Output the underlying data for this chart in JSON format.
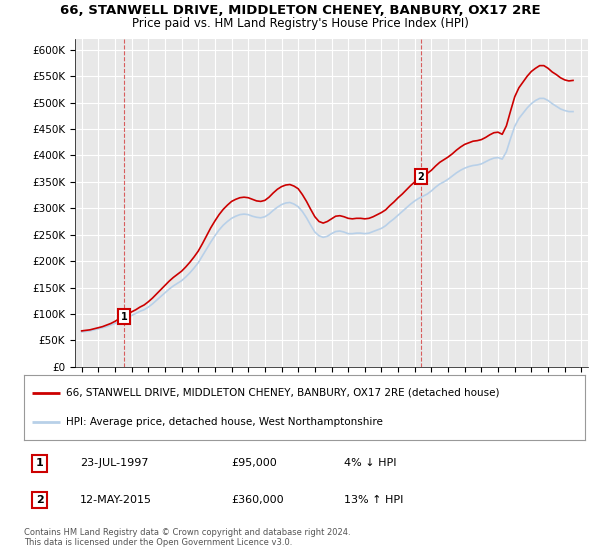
{
  "title_line1": "66, STANWELL DRIVE, MIDDLETON CHENEY, BANBURY, OX17 2RE",
  "title_line2": "Price paid vs. HM Land Registry's House Price Index (HPI)",
  "background_color": "#ffffff",
  "plot_bg_color": "#e8e8e8",
  "grid_color": "#ffffff",
  "ylim": [
    0,
    620000
  ],
  "yticks": [
    0,
    50000,
    100000,
    150000,
    200000,
    250000,
    300000,
    350000,
    400000,
    450000,
    500000,
    550000,
    600000
  ],
  "ytick_labels": [
    "£0",
    "£50K",
    "£100K",
    "£150K",
    "£200K",
    "£250K",
    "£300K",
    "£350K",
    "£400K",
    "£450K",
    "£500K",
    "£550K",
    "£600K"
  ],
  "xlim_start": 1994.6,
  "xlim_end": 2025.4,
  "sale1_x": 1997.55,
  "sale1_y": 95000,
  "sale2_x": 2015.36,
  "sale2_y": 360000,
  "sale1_date": "23-JUL-1997",
  "sale1_price": "£95,000",
  "sale1_hpi": "4% ↓ HPI",
  "sale2_date": "12-MAY-2015",
  "sale2_price": "£360,000",
  "sale2_hpi": "13% ↑ HPI",
  "hpi_line_color": "#b8d0e8",
  "price_line_color": "#cc0000",
  "legend_label_red": "66, STANWELL DRIVE, MIDDLETON CHENEY, BANBURY, OX17 2RE (detached house)",
  "legend_label_blue": "HPI: Average price, detached house, West Northamptonshire",
  "footer": "Contains HM Land Registry data © Crown copyright and database right 2024.\nThis data is licensed under the Open Government Licence v3.0.",
  "hpi_data_x": [
    1995.0,
    1995.25,
    1995.5,
    1995.75,
    1996.0,
    1996.25,
    1996.5,
    1996.75,
    1997.0,
    1997.25,
    1997.5,
    1997.75,
    1998.0,
    1998.25,
    1998.5,
    1998.75,
    1999.0,
    1999.25,
    1999.5,
    1999.75,
    2000.0,
    2000.25,
    2000.5,
    2000.75,
    2001.0,
    2001.25,
    2001.5,
    2001.75,
    2002.0,
    2002.25,
    2002.5,
    2002.75,
    2003.0,
    2003.25,
    2003.5,
    2003.75,
    2004.0,
    2004.25,
    2004.5,
    2004.75,
    2005.0,
    2005.25,
    2005.5,
    2005.75,
    2006.0,
    2006.25,
    2006.5,
    2006.75,
    2007.0,
    2007.25,
    2007.5,
    2007.75,
    2008.0,
    2008.25,
    2008.5,
    2008.75,
    2009.0,
    2009.25,
    2009.5,
    2009.75,
    2010.0,
    2010.25,
    2010.5,
    2010.75,
    2011.0,
    2011.25,
    2011.5,
    2011.75,
    2012.0,
    2012.25,
    2012.5,
    2012.75,
    2013.0,
    2013.25,
    2013.5,
    2013.75,
    2014.0,
    2014.25,
    2014.5,
    2014.75,
    2015.0,
    2015.25,
    2015.5,
    2015.75,
    2016.0,
    2016.25,
    2016.5,
    2016.75,
    2017.0,
    2017.25,
    2017.5,
    2017.75,
    2018.0,
    2018.25,
    2018.5,
    2018.75,
    2019.0,
    2019.25,
    2019.5,
    2019.75,
    2020.0,
    2020.25,
    2020.5,
    2020.75,
    2021.0,
    2021.25,
    2021.5,
    2021.75,
    2022.0,
    2022.25,
    2022.5,
    2022.75,
    2023.0,
    2023.25,
    2023.5,
    2023.75,
    2024.0,
    2024.25,
    2024.5
  ],
  "hpi_data_y": [
    66000,
    67000,
    68000,
    70000,
    72000,
    74000,
    76000,
    79000,
    82000,
    86000,
    90000,
    94000,
    97000,
    101000,
    105000,
    108000,
    113000,
    119000,
    126000,
    133000,
    140000,
    147000,
    153000,
    158000,
    163000,
    170000,
    178000,
    187000,
    197000,
    210000,
    223000,
    236000,
    248000,
    259000,
    268000,
    275000,
    281000,
    285000,
    288000,
    289000,
    288000,
    285000,
    283000,
    282000,
    284000,
    289000,
    296000,
    302000,
    307000,
    310000,
    311000,
    308000,
    303000,
    294000,
    282000,
    268000,
    255000,
    248000,
    245000,
    247000,
    252000,
    256000,
    257000,
    255000,
    252000,
    252000,
    253000,
    253000,
    252000,
    253000,
    256000,
    259000,
    262000,
    267000,
    274000,
    280000,
    287000,
    294000,
    301000,
    308000,
    314000,
    319000,
    323000,
    327000,
    333000,
    340000,
    346000,
    350000,
    355000,
    361000,
    367000,
    372000,
    376000,
    379000,
    381000,
    382000,
    384000,
    388000,
    392000,
    395000,
    396000,
    393000,
    407000,
    432000,
    455000,
    470000,
    480000,
    490000,
    498000,
    504000,
    508000,
    508000,
    504000,
    498000,
    493000,
    488000,
    485000,
    483000,
    483000
  ],
  "price_data_x": [
    1995.0,
    1995.25,
    1995.5,
    1995.75,
    1996.0,
    1996.25,
    1996.5,
    1996.75,
    1997.0,
    1997.25,
    1997.5,
    1997.75,
    1998.0,
    1998.25,
    1998.5,
    1998.75,
    1999.0,
    1999.25,
    1999.5,
    1999.75,
    2000.0,
    2000.25,
    2000.5,
    2000.75,
    2001.0,
    2001.25,
    2001.5,
    2001.75,
    2002.0,
    2002.25,
    2002.5,
    2002.75,
    2003.0,
    2003.25,
    2003.5,
    2003.75,
    2004.0,
    2004.25,
    2004.5,
    2004.75,
    2005.0,
    2005.25,
    2005.5,
    2005.75,
    2006.0,
    2006.25,
    2006.5,
    2006.75,
    2007.0,
    2007.25,
    2007.5,
    2007.75,
    2008.0,
    2008.25,
    2008.5,
    2008.75,
    2009.0,
    2009.25,
    2009.5,
    2009.75,
    2010.0,
    2010.25,
    2010.5,
    2010.75,
    2011.0,
    2011.25,
    2011.5,
    2011.75,
    2012.0,
    2012.25,
    2012.5,
    2012.75,
    2013.0,
    2013.25,
    2013.5,
    2013.75,
    2014.0,
    2014.25,
    2014.5,
    2014.75,
    2015.0,
    2015.25,
    2015.5,
    2015.75,
    2016.0,
    2016.25,
    2016.5,
    2016.75,
    2017.0,
    2017.25,
    2017.5,
    2017.75,
    2018.0,
    2018.25,
    2018.5,
    2018.75,
    2019.0,
    2019.25,
    2019.5,
    2019.75,
    2020.0,
    2020.25,
    2020.5,
    2020.75,
    2021.0,
    2021.25,
    2021.5,
    2021.75,
    2022.0,
    2022.25,
    2022.5,
    2022.75,
    2023.0,
    2023.25,
    2023.5,
    2023.75,
    2024.0,
    2024.25,
    2024.5
  ],
  "price_data_y": [
    68000,
    69000,
    70000,
    72000,
    74000,
    76000,
    79000,
    82000,
    86000,
    91000,
    95000,
    99000,
    104000,
    108000,
    113000,
    117000,
    123000,
    130000,
    138000,
    146000,
    154000,
    162000,
    169000,
    175000,
    181000,
    189000,
    198000,
    208000,
    219000,
    233000,
    248000,
    263000,
    276000,
    288000,
    298000,
    306000,
    313000,
    317000,
    320000,
    321000,
    320000,
    317000,
    314000,
    313000,
    315000,
    321000,
    329000,
    336000,
    341000,
    344000,
    345000,
    342000,
    337000,
    326000,
    313000,
    298000,
    284000,
    275000,
    272000,
    275000,
    280000,
    285000,
    286000,
    284000,
    281000,
    280000,
    281000,
    281000,
    280000,
    281000,
    284000,
    288000,
    292000,
    297000,
    305000,
    312000,
    320000,
    327000,
    335000,
    343000,
    350000,
    356000,
    361000,
    366000,
    372000,
    380000,
    387000,
    392000,
    397000,
    403000,
    410000,
    416000,
    421000,
    424000,
    427000,
    428000,
    430000,
    434000,
    439000,
    443000,
    444000,
    440000,
    456000,
    484000,
    511000,
    528000,
    539000,
    550000,
    559000,
    565000,
    570000,
    570000,
    565000,
    558000,
    553000,
    547000,
    543000,
    541000,
    542000
  ]
}
